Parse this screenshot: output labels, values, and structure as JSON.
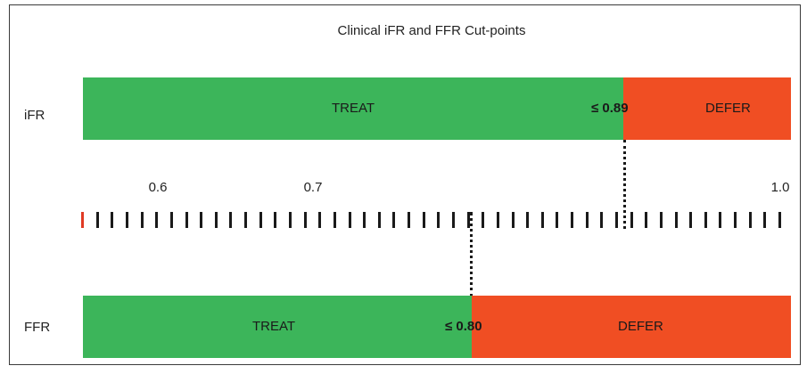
{
  "title": "Clinical iFR and FFR Cut-points",
  "colors": {
    "treat": "#3cb55a",
    "defer": "#f04e23",
    "tick": "#1a1a1a",
    "first_tick": "#e03a24"
  },
  "ifr": {
    "label": "iFR",
    "treat_label": "TREAT",
    "defer_label": "DEFER",
    "cutpoint_label": "≤ 0.89",
    "cutpoint_value": 0.89
  },
  "ffr": {
    "label": "FFR",
    "treat_label": "TREAT",
    "defer_label": "DEFER",
    "cutpoint_label": "≤ 0.80",
    "cutpoint_value": 0.8
  },
  "scale": {
    "tick_labels": [
      "0.6",
      "0.7",
      "1.0"
    ],
    "tick_count": 48
  }
}
